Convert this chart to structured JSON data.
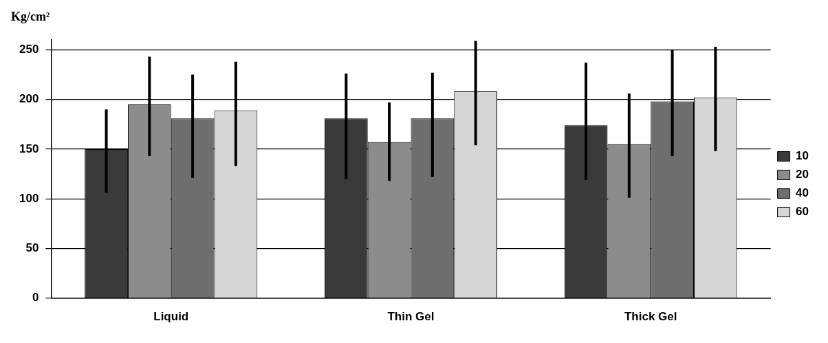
{
  "chart_data": {
    "type": "bar",
    "ylabel": "Kg/cm²",
    "categories": [
      "Liquid",
      "Thin Gel",
      "Thick Gel"
    ],
    "series": [
      {
        "name": "10",
        "color": "#3a3a3a",
        "values": [
          150,
          181,
          174
        ],
        "errors": [
          [
            106,
            190
          ],
          [
            120,
            226
          ],
          [
            119,
            237
          ]
        ]
      },
      {
        "name": "20",
        "color": "#8c8c8c",
        "values": [
          195,
          157,
          155
        ],
        "errors": [
          [
            143,
            243
          ],
          [
            118,
            197
          ],
          [
            101,
            206
          ]
        ]
      },
      {
        "name": "40",
        "color": "#6e6e6e",
        "values": [
          181,
          181,
          198
        ],
        "errors": [
          [
            121,
            225
          ],
          [
            122,
            227
          ],
          [
            143,
            250
          ]
        ]
      },
      {
        "name": "60",
        "color": "#d6d6d6",
        "values": [
          189,
          208,
          202
        ],
        "errors": [
          [
            133,
            238
          ],
          [
            154,
            259
          ],
          [
            148,
            253
          ]
        ]
      }
    ],
    "ylim": [
      0,
      260
    ],
    "yticks": [
      0,
      50,
      100,
      150,
      200,
      250
    ],
    "grid": "y",
    "legend": "right"
  }
}
